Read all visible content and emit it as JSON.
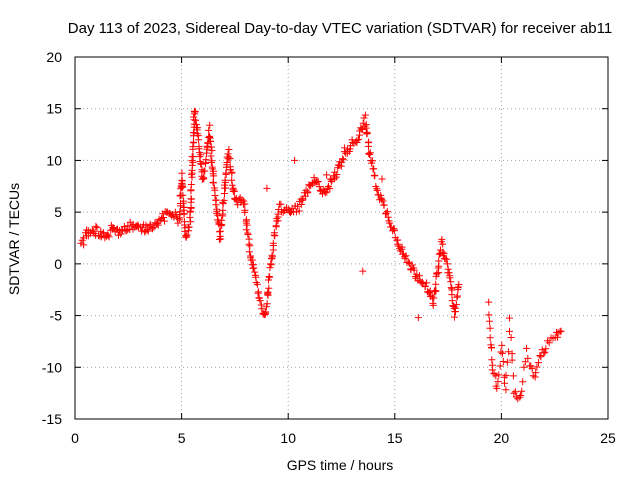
{
  "chart_data": {
    "type": "scatter",
    "title": "Day 113 of 2023, Sidereal Day-to-day VTEC variation (SDTVAR) for receiver ab11",
    "xlabel": "GPS time / hours",
    "ylabel": "SDTVAR / TECUs",
    "xlim": [
      0,
      25
    ],
    "ylim": [
      -15,
      20
    ],
    "xticks": [
      "0",
      "5",
      "10",
      "15",
      "20",
      "25"
    ],
    "yticks": [
      "-15",
      "-10",
      "-5",
      "0",
      "5",
      "10",
      "15",
      "20"
    ],
    "grid": true,
    "marker": "+",
    "color": "#ff0000",
    "series": [
      {
        "name": "SDTVAR",
        "trace": [
          [
            0.3,
            2.0
          ],
          [
            0.6,
            3.0
          ],
          [
            1.0,
            3.2
          ],
          [
            1.4,
            2.6
          ],
          [
            1.8,
            3.5
          ],
          [
            2.2,
            3.0
          ],
          [
            2.6,
            3.8
          ],
          [
            3.0,
            3.4
          ],
          [
            3.5,
            3.6
          ],
          [
            4.0,
            4.3
          ],
          [
            4.5,
            5.0
          ],
          [
            4.9,
            4.2
          ],
          [
            5.0,
            8.8
          ],
          [
            5.2,
            2.5
          ],
          [
            5.4,
            4.0
          ],
          [
            5.6,
            15.0
          ],
          [
            5.8,
            12.0
          ],
          [
            6.0,
            8.0
          ],
          [
            6.3,
            13.0
          ],
          [
            6.5,
            8.0
          ],
          [
            6.8,
            2.5
          ],
          [
            7.2,
            11.0
          ],
          [
            7.5,
            6.0
          ],
          [
            7.9,
            6.0
          ],
          [
            8.2,
            1.5
          ],
          [
            8.5,
            -2.0
          ],
          [
            8.9,
            -5.2
          ],
          [
            9.3,
            1.8
          ],
          [
            9.6,
            5.5
          ],
          [
            10.0,
            5.0
          ],
          [
            10.5,
            5.5
          ],
          [
            11.2,
            8.0
          ],
          [
            11.7,
            7.0
          ],
          [
            12.2,
            8.5
          ],
          [
            12.7,
            11.0
          ],
          [
            13.2,
            12.0
          ],
          [
            13.6,
            14.0
          ],
          [
            13.8,
            11.0
          ],
          [
            14.2,
            7.0
          ],
          [
            14.6,
            5.0
          ],
          [
            15.0,
            3.0
          ],
          [
            15.5,
            0.5
          ],
          [
            16.0,
            -1.0
          ],
          [
            16.5,
            -2.0
          ],
          [
            16.8,
            -4.0
          ],
          [
            17.2,
            2.0
          ],
          [
            17.6,
            -1.5
          ],
          [
            17.8,
            -5.0
          ],
          [
            18.0,
            -2.0
          ]
        ],
        "sparse": [
          [
            19.4,
            -3.8
          ],
          [
            19.5,
            -7.5
          ],
          [
            19.6,
            -10.0
          ],
          [
            19.8,
            -12.0
          ],
          [
            20.0,
            -8.0
          ],
          [
            20.2,
            -12.3
          ],
          [
            20.4,
            -5.5
          ],
          [
            20.6,
            -12.5
          ],
          [
            20.9,
            -13.0
          ],
          [
            21.2,
            -8.5
          ],
          [
            21.5,
            -11.0
          ],
          [
            21.8,
            -9.0
          ],
          [
            22.1,
            -8.0
          ],
          [
            22.5,
            -7.0
          ],
          [
            22.8,
            -6.5
          ]
        ],
        "outliers": [
          [
            10.3,
            10.0
          ],
          [
            13.5,
            -0.7
          ],
          [
            14.4,
            8.2
          ],
          [
            16.1,
            -5.2
          ],
          [
            9.0,
            7.3
          ],
          [
            11.8,
            8.6
          ]
        ]
      }
    ]
  }
}
